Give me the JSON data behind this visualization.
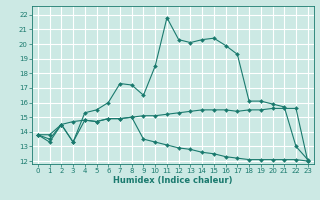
{
  "title": "",
  "xlabel": "Humidex (Indice chaleur)",
  "ylabel": "",
  "background_color": "#cce9e4",
  "grid_color": "#ffffff",
  "line_color": "#1a7a6e",
  "xlim": [
    -0.5,
    23.5
  ],
  "ylim": [
    11.8,
    22.6
  ],
  "xticks": [
    0,
    1,
    2,
    3,
    4,
    5,
    6,
    7,
    8,
    9,
    10,
    11,
    12,
    13,
    14,
    15,
    16,
    17,
    18,
    19,
    20,
    21,
    22,
    23
  ],
  "yticks": [
    12,
    13,
    14,
    15,
    16,
    17,
    18,
    19,
    20,
    21,
    22
  ],
  "series1_x": [
    0,
    1,
    2,
    3,
    4,
    5,
    6,
    7,
    8,
    9,
    10,
    11,
    12,
    13,
    14,
    15,
    16,
    17,
    18,
    19,
    20,
    21,
    22,
    23
  ],
  "series1_y": [
    13.8,
    13.3,
    14.5,
    13.3,
    15.3,
    15.5,
    16.0,
    17.3,
    17.2,
    16.5,
    18.5,
    21.8,
    20.3,
    20.1,
    20.3,
    20.4,
    19.9,
    19.3,
    16.1,
    16.1,
    15.9,
    15.7,
    13.0,
    12.1
  ],
  "series2_x": [
    0,
    1,
    2,
    3,
    4,
    5,
    6,
    7,
    8,
    9,
    10,
    11,
    12,
    13,
    14,
    15,
    16,
    17,
    18,
    19,
    20,
    21,
    22,
    23
  ],
  "series2_y": [
    13.8,
    13.8,
    14.5,
    14.7,
    14.8,
    14.7,
    14.9,
    14.9,
    15.0,
    15.1,
    15.1,
    15.2,
    15.3,
    15.4,
    15.5,
    15.5,
    15.5,
    15.4,
    15.5,
    15.5,
    15.6,
    15.6,
    15.6,
    12.0
  ],
  "series3_x": [
    0,
    1,
    2,
    3,
    4,
    5,
    6,
    7,
    8,
    9,
    10,
    11,
    12,
    13,
    14,
    15,
    16,
    17,
    18,
    19,
    20,
    21,
    22,
    23
  ],
  "series3_y": [
    13.8,
    13.5,
    14.5,
    13.3,
    14.8,
    14.7,
    14.9,
    14.9,
    15.0,
    13.5,
    13.3,
    13.1,
    12.9,
    12.8,
    12.6,
    12.5,
    12.3,
    12.2,
    12.1,
    12.1,
    12.1,
    12.1,
    12.1,
    12.0
  ],
  "xlabel_fontsize": 6,
  "tick_fontsize": 5
}
